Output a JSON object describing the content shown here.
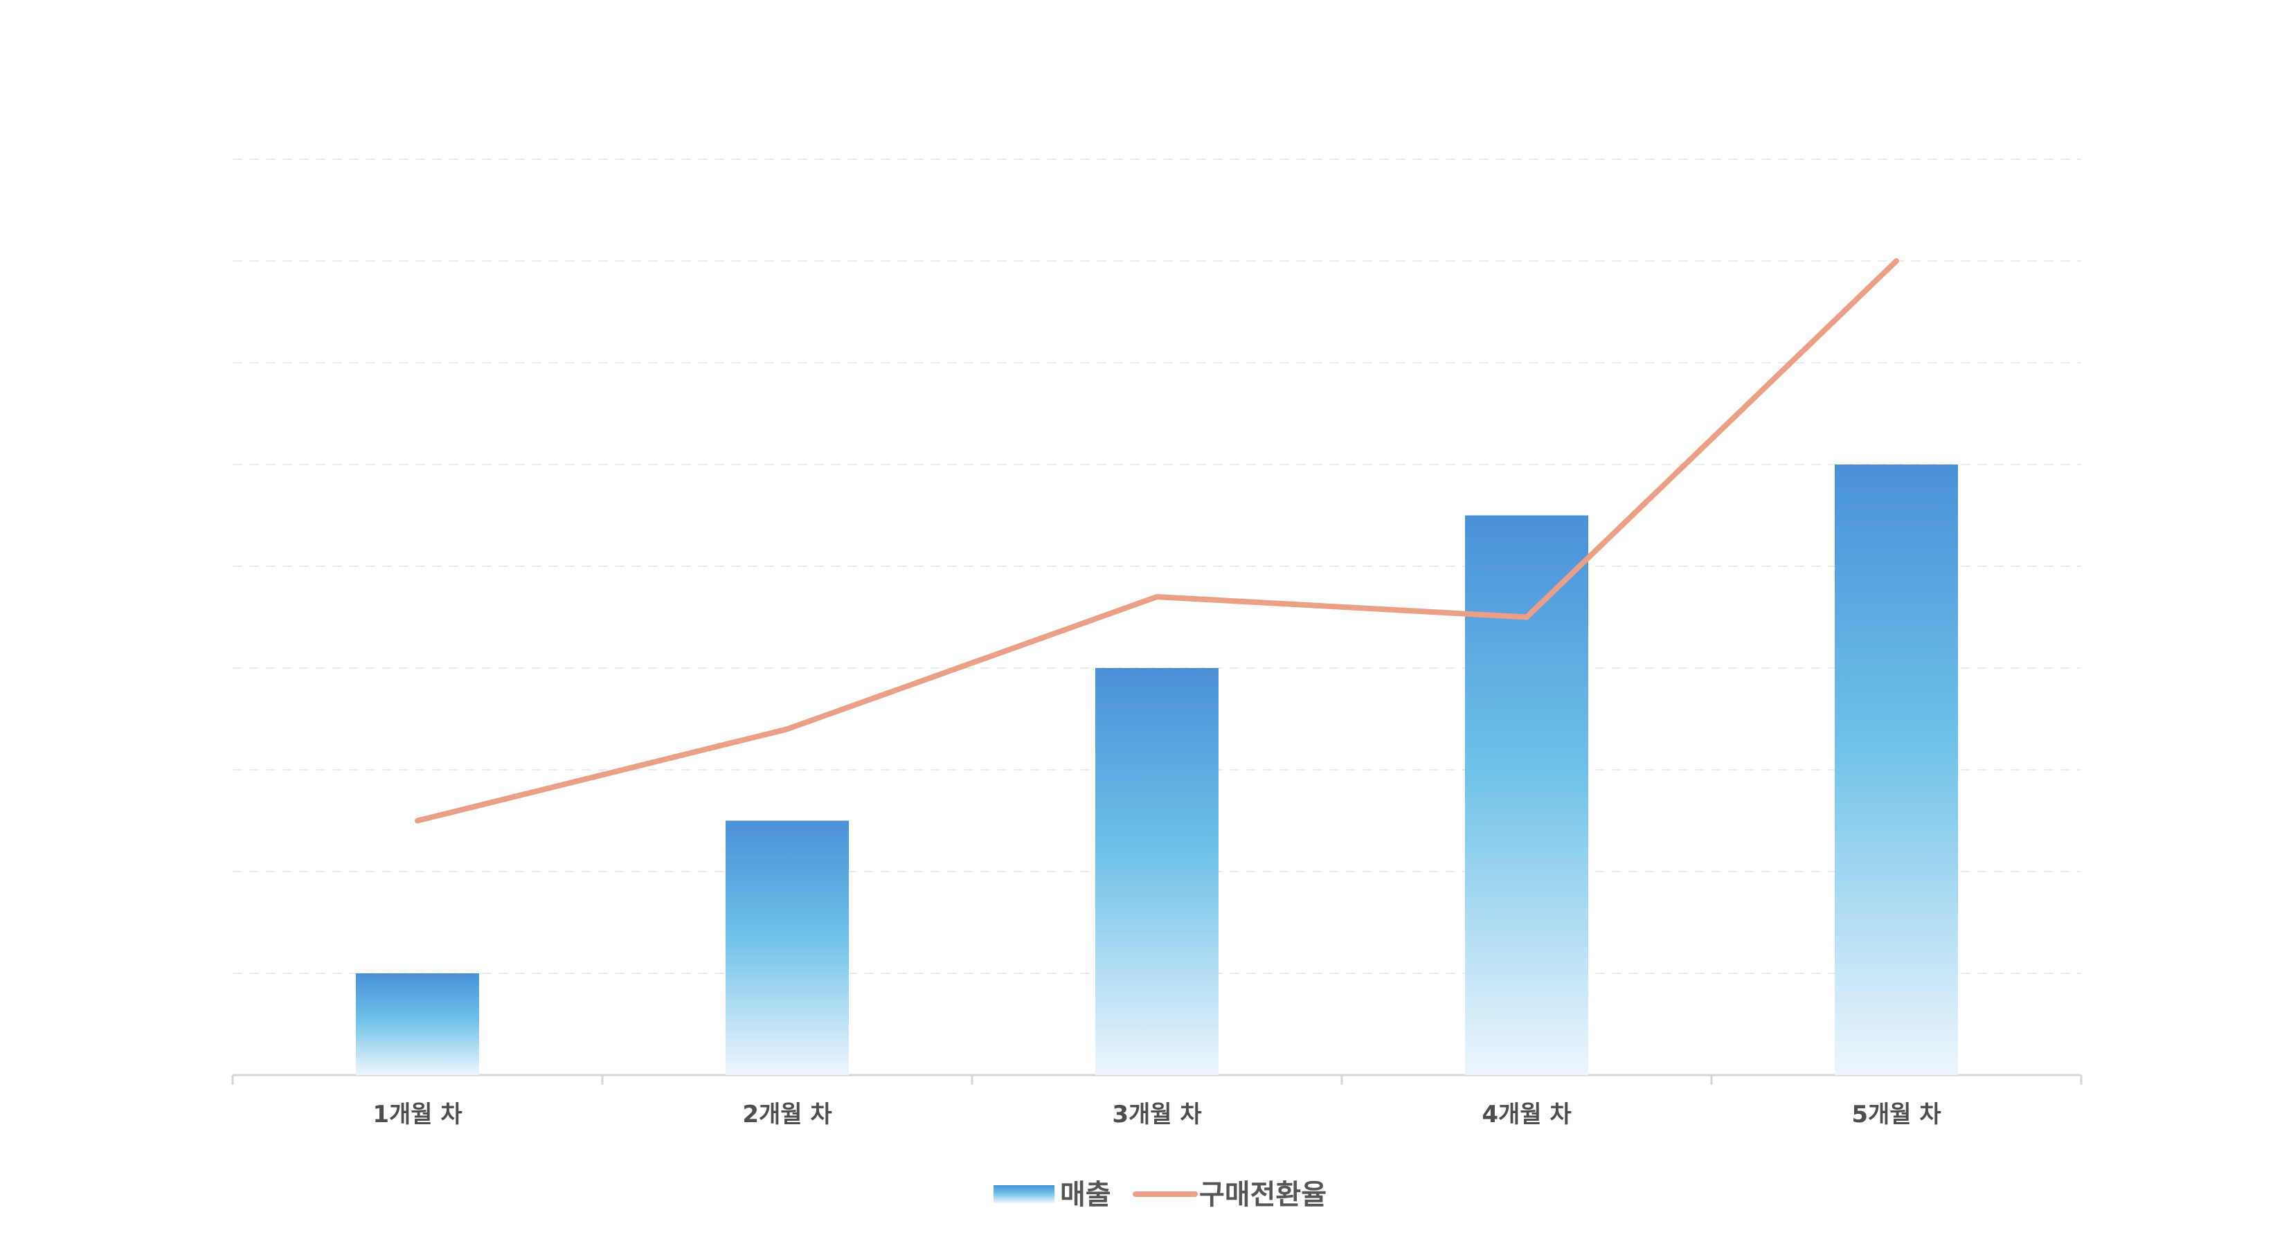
{
  "chart_data": {
    "type": "bar",
    "categories": [
      "1개월 차",
      "2개월 차",
      "3개월 차",
      "4개월 차",
      "5개월 차"
    ],
    "series": [
      {
        "name": "매출",
        "type": "bar",
        "values": [
          1,
          2.5,
          4,
          5.5,
          6
        ],
        "color_top": "#4a90d9",
        "color_mid": "#6ec1e8",
        "color_bottom": "#eef6fd"
      },
      {
        "name": "구매전환율",
        "type": "line",
        "values": [
          2.5,
          3.4,
          4.7,
          4.5,
          8
        ],
        "color": "#eb9f84"
      }
    ],
    "ylim": [
      0,
      9
    ],
    "grid": true,
    "grid_style": "dashed",
    "legend": "bottom-center",
    "title": "",
    "xlabel": "",
    "ylabel": ""
  }
}
